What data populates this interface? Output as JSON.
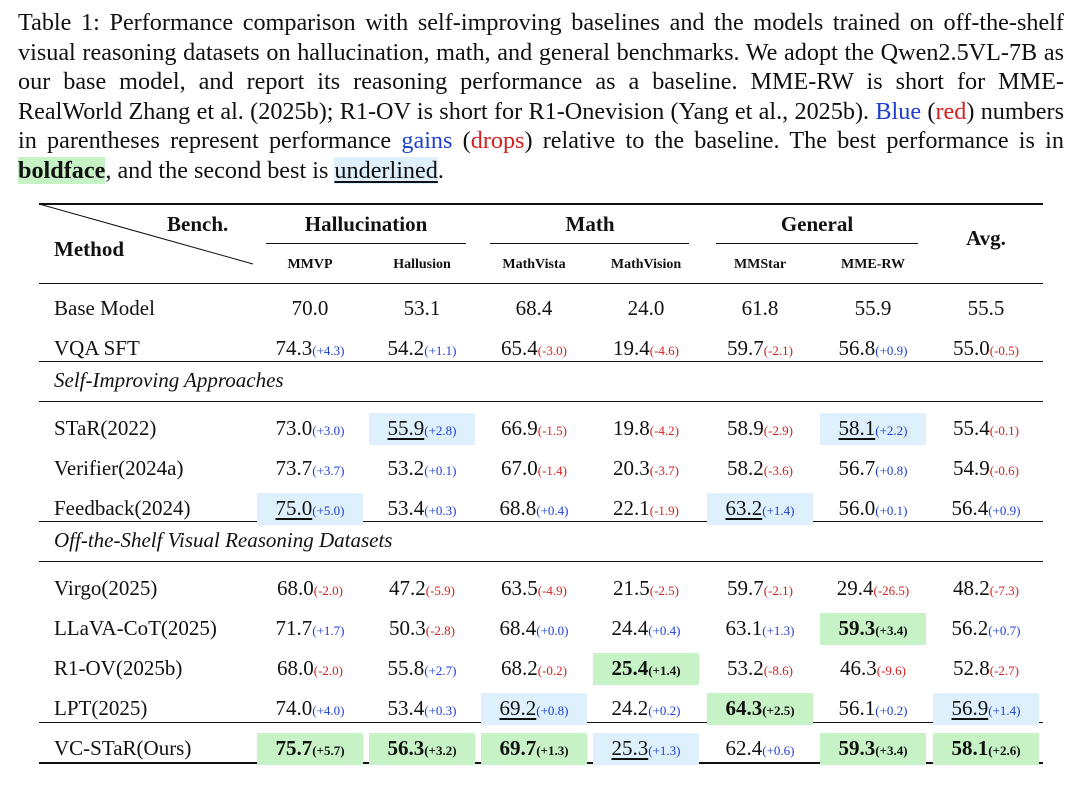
{
  "caption": {
    "part1": "Table 1: Performance comparison with self-improving baselines and the models trained on off-the-shelf visual reasoning datasets on hallucination, math, and general benchmarks. We adopt the Qwen2.5VL-7B as our base model, and report its reasoning performance as a baseline. MME-RW is short for MME-RealWorld Zhang et al. (2025b); R1-OV is short for R1-Onevision (Yang et al., 2025b). ",
    "blue_word": "Blue",
    "part2": " (",
    "red_word": "red",
    "part3": ") numbers in parentheses represent performance ",
    "gains_word": "gains",
    "part4": " (",
    "drops_word": "drops",
    "part5": ") relative to the baseline. The best performance is in ",
    "bold_word": "boldface",
    "part6": ", and the second best is ",
    "underlined_word": "underlined",
    "part7": "."
  },
  "header": {
    "bench": "Bench.",
    "method": "Method",
    "avg": "Avg.",
    "groups": [
      "Hallucination",
      "Math",
      "General"
    ],
    "columns": [
      "MMVP",
      "Hallusion",
      "MathVista",
      "MathVision",
      "MMStar",
      "MME-RW"
    ]
  },
  "sections": {
    "self_improving": "Self-Improving Approaches",
    "off_shelf": "Off-the-Shelf Visual Reasoning Datasets"
  },
  "rows": [
    {
      "method": "Base Model",
      "cells": [
        [
          "70.0",
          ""
        ],
        [
          "53.1",
          ""
        ],
        [
          "68.4",
          ""
        ],
        [
          "24.0",
          ""
        ],
        [
          "61.8",
          ""
        ],
        [
          "55.9",
          ""
        ],
        [
          "55.5",
          ""
        ]
      ]
    },
    {
      "method": "VQA SFT",
      "cells": [
        [
          "74.3",
          "(+4.3)"
        ],
        [
          "54.2",
          "(+1.1)"
        ],
        [
          "65.4",
          "(-3.0)"
        ],
        [
          "19.4",
          "(-4.6)"
        ],
        [
          "59.7",
          "(-2.1)"
        ],
        [
          "56.8",
          "(+0.9)"
        ],
        [
          "55.0",
          "(-0.5)"
        ]
      ]
    },
    {
      "method": "STaR(2022)",
      "cells": [
        [
          "73.0",
          "(+3.0)"
        ],
        [
          "55.9",
          "(+2.8)"
        ],
        [
          "66.9",
          "(-1.5)"
        ],
        [
          "19.8",
          "(-4.2)"
        ],
        [
          "58.9",
          "(-2.9)"
        ],
        [
          "58.1",
          "(+2.2)"
        ],
        [
          "55.4",
          "(-0.1)"
        ]
      ]
    },
    {
      "method": "Verifier(2024a)",
      "cells": [
        [
          "73.7",
          "(+3.7)"
        ],
        [
          "53.2",
          "(+0.1)"
        ],
        [
          "67.0",
          "(-1.4)"
        ],
        [
          "20.3",
          "(-3.7)"
        ],
        [
          "58.2",
          "(-3.6)"
        ],
        [
          "56.7",
          "(+0.8)"
        ],
        [
          "54.9",
          "(-0.6)"
        ]
      ]
    },
    {
      "method": "Feedback(2024)",
      "cells": [
        [
          "75.0",
          "(+5.0)"
        ],
        [
          "53.4",
          "(+0.3)"
        ],
        [
          "68.8",
          "(+0.4)"
        ],
        [
          "22.1",
          "(-1.9)"
        ],
        [
          "63.2",
          "(+1.4)"
        ],
        [
          "56.0",
          "(+0.1)"
        ],
        [
          "56.4",
          "(+0.9)"
        ]
      ]
    },
    {
      "method": "Virgo(2025)",
      "cells": [
        [
          "68.0",
          "(-2.0)"
        ],
        [
          "47.2",
          "(-5.9)"
        ],
        [
          "63.5",
          "(-4.9)"
        ],
        [
          "21.5",
          "(-2.5)"
        ],
        [
          "59.7",
          "(-2.1)"
        ],
        [
          "29.4",
          "(-26.5)"
        ],
        [
          "48.2",
          "(-7.3)"
        ]
      ]
    },
    {
      "method": "LLaVA-CoT(2025)",
      "cells": [
        [
          "71.7",
          "(+1.7)"
        ],
        [
          "50.3",
          "(-2.8)"
        ],
        [
          "68.4",
          "(+0.0)"
        ],
        [
          "24.4",
          "(+0.4)"
        ],
        [
          "63.1",
          "(+1.3)"
        ],
        [
          "59.3",
          "(+3.4)"
        ],
        [
          "56.2",
          "(+0.7)"
        ]
      ]
    },
    {
      "method": "R1-OV(2025b)",
      "cells": [
        [
          "68.0",
          "(-2.0)"
        ],
        [
          "55.8",
          "(+2.7)"
        ],
        [
          "68.2",
          "(-0.2)"
        ],
        [
          "25.4",
          "(+1.4)"
        ],
        [
          "53.2",
          "(-8.6)"
        ],
        [
          "46.3",
          "(-9.6)"
        ],
        [
          "52.8",
          "(-2.7)"
        ]
      ]
    },
    {
      "method": "LPT(2025)",
      "cells": [
        [
          "74.0",
          "(+4.0)"
        ],
        [
          "53.4",
          "(+0.3)"
        ],
        [
          "69.2",
          "(+0.8)"
        ],
        [
          "24.2",
          "(+0.2)"
        ],
        [
          "64.3",
          "(+2.5)"
        ],
        [
          "56.1",
          "(+0.2)"
        ],
        [
          "56.9",
          "(+1.4)"
        ]
      ]
    },
    {
      "method": "VC-STaR(Ours)",
      "cells": [
        [
          "75.7",
          "(+5.7)"
        ],
        [
          "56.3",
          "(+3.2)"
        ],
        [
          "69.7",
          "(+1.3)"
        ],
        [
          "25.3",
          "(+1.3)"
        ],
        [
          "62.4",
          "(+0.6)"
        ],
        [
          "59.3",
          "(+3.4)"
        ],
        [
          "58.1",
          "(+2.6)"
        ]
      ]
    }
  ],
  "best": [
    [
      9,
      0
    ],
    [
      9,
      1
    ],
    [
      9,
      2
    ],
    [
      7,
      3
    ],
    [
      8,
      4
    ],
    [
      6,
      5
    ],
    [
      9,
      5
    ],
    [
      9,
      6
    ]
  ],
  "second": [
    [
      4,
      0
    ],
    [
      2,
      1
    ],
    [
      8,
      2
    ],
    [
      9,
      3
    ],
    [
      4,
      4
    ],
    [
      2,
      5
    ],
    [
      8,
      6
    ]
  ],
  "colors": {
    "gain": "#1f3fd1",
    "drop": "#d42020",
    "best_bg": "#c6f2c6",
    "second_bg": "#ddf0fb"
  }
}
